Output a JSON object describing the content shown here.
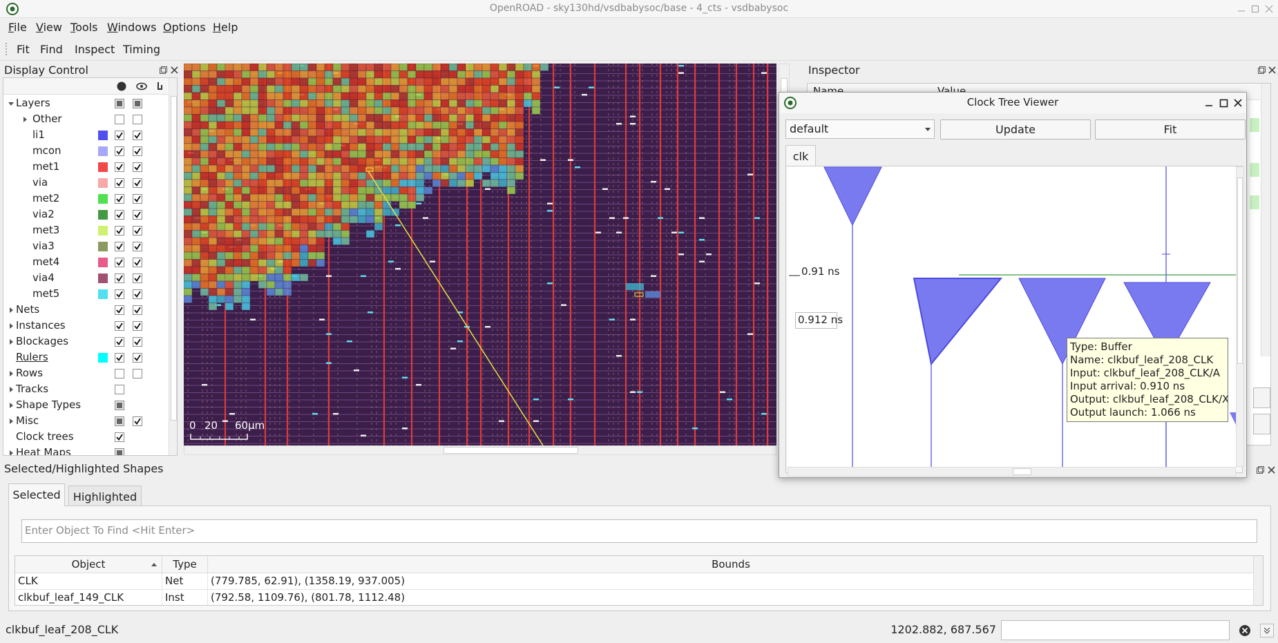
{
  "window": {
    "title": "OpenROAD - sky130hd/vsdbabysoc/base - 4_cts - vsdbabysoc"
  },
  "menu": [
    "File",
    "View",
    "Tools",
    "Windows",
    "Options",
    "Help"
  ],
  "toolbar": [
    "Fit",
    "Find",
    "Inspect",
    "Timing"
  ],
  "display_control": {
    "title": "Display Control",
    "items": [
      {
        "name": "Layers",
        "expandable": true,
        "expanded": true,
        "visible": "partial",
        "selectable": "partial",
        "children": [
          {
            "name": "Other",
            "expandable": true,
            "visible": false,
            "selectable": false
          },
          {
            "name": "li1",
            "color": "#5050f0",
            "visible": true,
            "selectable": true
          },
          {
            "name": "mcon",
            "color": "#a8a8f8",
            "visible": true,
            "selectable": true
          },
          {
            "name": "met1",
            "color": "#f04848",
            "visible": true,
            "selectable": true
          },
          {
            "name": "via",
            "color": "#f8a8a8",
            "visible": true,
            "selectable": true
          },
          {
            "name": "met2",
            "color": "#50e050",
            "visible": true,
            "selectable": true
          },
          {
            "name": "via2",
            "color": "#449944",
            "visible": true,
            "selectable": true
          },
          {
            "name": "met3",
            "color": "#d0f070",
            "visible": true,
            "selectable": true
          },
          {
            "name": "via3",
            "color": "#8a9a60",
            "visible": true,
            "selectable": true
          },
          {
            "name": "met4",
            "color": "#e85a8a",
            "visible": true,
            "selectable": true
          },
          {
            "name": "via4",
            "color": "#a05070",
            "visible": true,
            "selectable": true
          },
          {
            "name": "met5",
            "color": "#50e0f0",
            "visible": true,
            "selectable": true
          }
        ]
      },
      {
        "name": "Nets",
        "expandable": true,
        "visible": true,
        "selectable": true
      },
      {
        "name": "Instances",
        "expandable": true,
        "visible": true,
        "selectable": true
      },
      {
        "name": "Blockages",
        "expandable": true,
        "visible": true,
        "selectable": true
      },
      {
        "name": "Rulers",
        "color": "#00ffff",
        "visible": true,
        "selectable": true
      },
      {
        "name": "Rows",
        "expandable": true,
        "visible": false,
        "selectable": false
      },
      {
        "name": "Tracks",
        "expandable": true,
        "visible": false
      },
      {
        "name": "Shape Types",
        "expandable": true,
        "visible": "partial"
      },
      {
        "name": "Misc",
        "expandable": true,
        "visible": "partial",
        "selectable": true
      },
      {
        "name": "Clock trees",
        "visible": true
      },
      {
        "name": "Heat Maps",
        "expandable": true,
        "visible": "partial"
      }
    ]
  },
  "layout_view": {
    "scale_labels": [
      "0",
      "20",
      "60µm"
    ]
  },
  "inspector": {
    "title": "Inspector",
    "columns": [
      "Name",
      "Value"
    ]
  },
  "clock_tree_viewer": {
    "title": "Clock Tree Viewer",
    "corner": "default",
    "buttons": [
      "Update",
      "Fit"
    ],
    "tab": "clk",
    "time_labels": [
      "0.91 ns",
      "0.912 ns"
    ],
    "tooltip": [
      "Type: Buffer",
      "Name: clkbuf_leaf_208_CLK",
      "Input: clkbuf_leaf_208_CLK/A",
      "Input arrival: 0.910 ns",
      "Output: clkbuf_leaf_208_CLK/X",
      "Output launch: 1.066 ns"
    ]
  },
  "selected_panel": {
    "title": "Selected/Highlighted Shapes",
    "tabs": [
      "Selected",
      "Highlighted"
    ],
    "active_tab": 0,
    "search_placeholder": "Enter Object To Find <Hit Enter>",
    "columns": [
      "Object",
      "Type",
      "Bounds"
    ],
    "rows": [
      [
        "CLK",
        "Net",
        "(779.785, 62.91), (1358.19, 937.005)"
      ],
      [
        "clkbuf_leaf_149_CLK",
        "Inst",
        "(792.58, 1109.76), (801.78, 1112.48)"
      ]
    ]
  },
  "status": {
    "message": "clkbuf_leaf_208_CLK",
    "coordinates": "1202.882, 687.567"
  }
}
